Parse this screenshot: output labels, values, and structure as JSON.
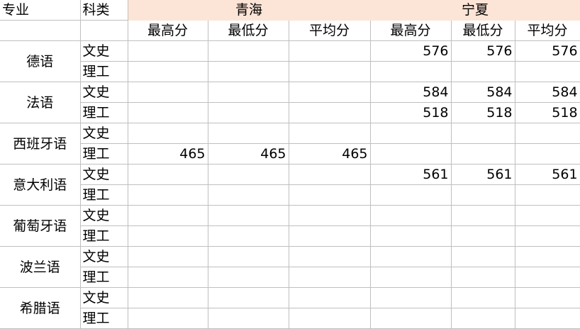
{
  "header": {
    "major": "专业",
    "category": "科类",
    "regions": [
      "青海",
      "宁夏"
    ],
    "stats": [
      "最高分",
      "最低分",
      "平均分"
    ]
  },
  "majors": [
    {
      "name": "德语",
      "rows": [
        {
          "category": "文史",
          "values": [
            "",
            "",
            "",
            "576",
            "576",
            "576"
          ]
        },
        {
          "category": "理工",
          "values": [
            "",
            "",
            "",
            "",
            "",
            ""
          ]
        }
      ]
    },
    {
      "name": "法语",
      "rows": [
        {
          "category": "文史",
          "values": [
            "",
            "",
            "",
            "584",
            "584",
            "584"
          ]
        },
        {
          "category": "理工",
          "values": [
            "",
            "",
            "",
            "518",
            "518",
            "518"
          ]
        }
      ]
    },
    {
      "name": "西班牙语",
      "rows": [
        {
          "category": "文史",
          "values": [
            "",
            "",
            "",
            "",
            "",
            ""
          ]
        },
        {
          "category": "理工",
          "values": [
            "465",
            "465",
            "465",
            "",
            "",
            ""
          ]
        }
      ]
    },
    {
      "name": "意大利语",
      "rows": [
        {
          "category": "文史",
          "values": [
            "",
            "",
            "",
            "561",
            "561",
            "561"
          ]
        },
        {
          "category": "理工",
          "values": [
            "",
            "",
            "",
            "",
            "",
            ""
          ]
        }
      ]
    },
    {
      "name": "葡萄牙语",
      "rows": [
        {
          "category": "文史",
          "values": [
            "",
            "",
            "",
            "",
            "",
            ""
          ]
        },
        {
          "category": "理工",
          "values": [
            "",
            "",
            "",
            "",
            "",
            ""
          ]
        }
      ]
    },
    {
      "name": "波兰语",
      "rows": [
        {
          "category": "文史",
          "values": [
            "",
            "",
            "",
            "",
            "",
            ""
          ]
        },
        {
          "category": "理工",
          "values": [
            "",
            "",
            "",
            "",
            "",
            ""
          ]
        }
      ]
    },
    {
      "name": "希腊语",
      "rows": [
        {
          "category": "文史",
          "values": [
            "",
            "",
            "",
            "",
            "",
            ""
          ]
        },
        {
          "category": "理工",
          "values": [
            "",
            "",
            "",
            "",
            "",
            ""
          ]
        }
      ]
    }
  ],
  "colors": {
    "header_fill": "#fce4d6",
    "grid": "#bfbfbf"
  }
}
